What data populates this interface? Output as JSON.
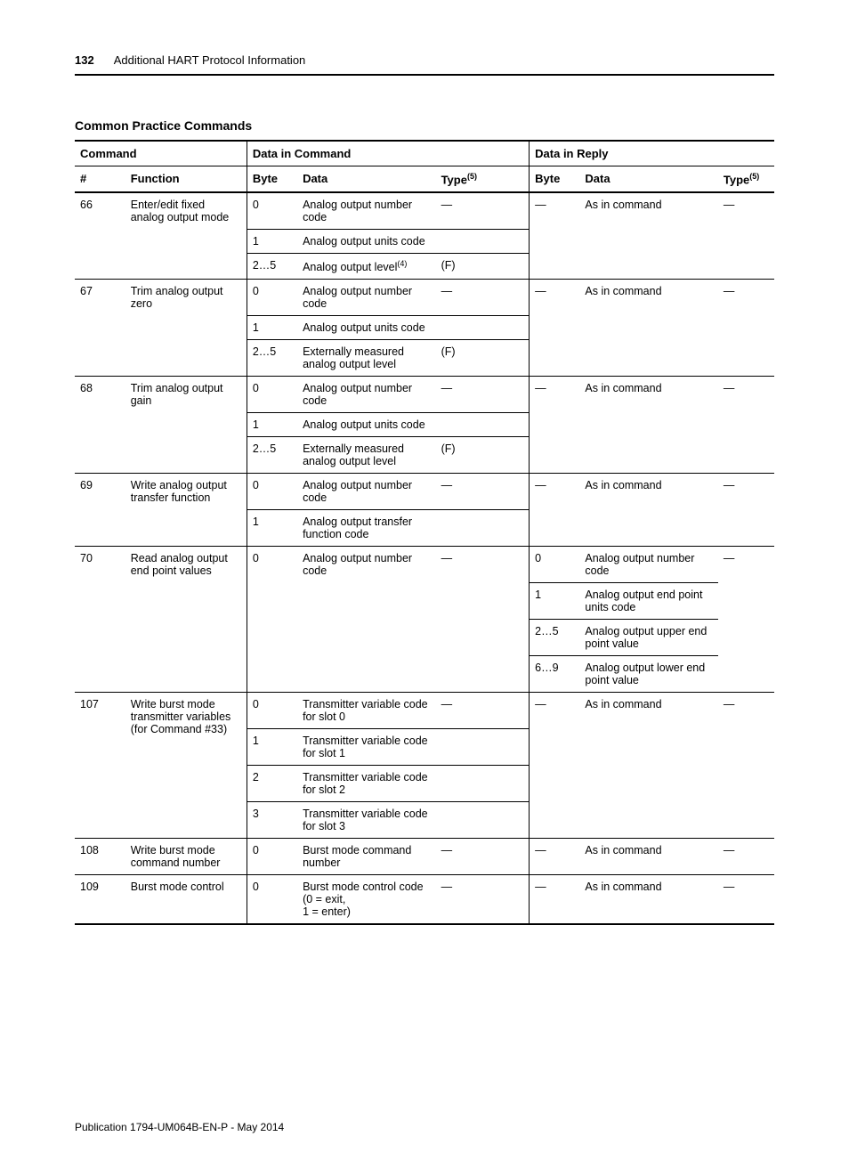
{
  "page_number": "132",
  "header_title": "Additional HART Protocol Information",
  "section_title": "Common Practice Commands",
  "footer": "Publication 1794-UM064B-EN-P - May 2014",
  "thead": {
    "g_command": "Command",
    "g_data_cmd": "Data in Command",
    "g_data_reply": "Data in Reply",
    "c_num": "#",
    "c_func": "Function",
    "c_byte1": "Byte",
    "c_data1": "Data",
    "c_type1": "Type",
    "c_type1_sup": "(5)",
    "c_byte2": "Byte",
    "c_data2": "Data",
    "c_type2": "Type",
    "c_type2_sup": "(5)"
  },
  "cmds": [
    {
      "num": "66",
      "func": "Enter/edit fixed analog output mode",
      "reply_byte": "—",
      "reply_data": "As in command",
      "reply_type": "—",
      "type_first": "—",
      "rows": [
        {
          "byte": "0",
          "data": "Analog output number code",
          "sup": "",
          "type": ""
        },
        {
          "byte": "1",
          "data": "Analog output units code",
          "sup": "",
          "type": ""
        },
        {
          "byte": "2…5",
          "data": "Analog output level",
          "sup": "(4)",
          "type": "(F)"
        }
      ]
    },
    {
      "num": "67",
      "func": "Trim analog output zero",
      "reply_byte": "—",
      "reply_data": "As in command",
      "reply_type": "—",
      "type_first": "—",
      "rows": [
        {
          "byte": "0",
          "data": "Analog output number code",
          "sup": "",
          "type": ""
        },
        {
          "byte": "1",
          "data": "Analog output units code",
          "sup": "",
          "type": ""
        },
        {
          "byte": "2…5",
          "data": "Externally measured analog output level",
          "sup": "",
          "type": "(F)"
        }
      ]
    },
    {
      "num": "68",
      "func": "Trim analog output gain",
      "reply_byte": "—",
      "reply_data": "As in command",
      "reply_type": "—",
      "type_first": "—",
      "rows": [
        {
          "byte": "0",
          "data": "Analog output number code",
          "sup": "",
          "type": ""
        },
        {
          "byte": "1",
          "data": "Analog output units code",
          "sup": "",
          "type": ""
        },
        {
          "byte": "2…5",
          "data": "Externally measured analog output level",
          "sup": "",
          "type": "(F)"
        }
      ]
    },
    {
      "num": "69",
      "func": "Write analog output transfer function",
      "reply_byte": "—",
      "reply_data": "As in command",
      "reply_type": "—",
      "type_first": "—",
      "rows": [
        {
          "byte": "0",
          "data": "Analog output number code",
          "sup": "",
          "type": ""
        },
        {
          "byte": "1",
          "data": "Analog output transfer function code",
          "sup": "",
          "type": ""
        }
      ]
    },
    {
      "num": "70",
      "func": "Read analog output end point values",
      "reply_type": "—",
      "type_first": "—",
      "rows": [
        {
          "byte": "0",
          "data": "Analog output number code",
          "sup": "",
          "type": ""
        }
      ],
      "reply_rows": [
        {
          "byte": "0",
          "data": "Analog output number code"
        },
        {
          "byte": "1",
          "data": "Analog output end point units code"
        },
        {
          "byte": "2…5",
          "data": "Analog output upper end point value"
        },
        {
          "byte": "6…9",
          "data": "Analog output lower end point value"
        }
      ]
    },
    {
      "num": "107",
      "func": "Write burst mode transmitter variables (for Command #33)",
      "reply_byte": "—",
      "reply_data": "As in command",
      "reply_type": "—",
      "type_first": "—",
      "rows": [
        {
          "byte": "0",
          "data": "Transmitter variable code for slot 0",
          "sup": "",
          "type": ""
        },
        {
          "byte": "1",
          "data": "Transmitter variable code for slot 1",
          "sup": "",
          "type": ""
        },
        {
          "byte": "2",
          "data": "Transmitter variable code for slot 2",
          "sup": "",
          "type": ""
        },
        {
          "byte": "3",
          "data": "Transmitter variable code for slot 3",
          "sup": "",
          "type": ""
        }
      ]
    },
    {
      "num": "108",
      "func": "Write burst mode command number",
      "reply_byte": "—",
      "reply_data": "As in command",
      "reply_type": "—",
      "type_first": "—",
      "rows": [
        {
          "byte": "0",
          "data": "Burst mode command number",
          "sup": "",
          "type": ""
        }
      ]
    },
    {
      "num": "109",
      "func": "Burst mode control",
      "reply_byte": "—",
      "reply_data": "As in command",
      "reply_type": "—",
      "type_first": "—",
      "rows": [
        {
          "byte": "0",
          "data": "Burst mode control code (0 = exit,\n1 = enter)",
          "sup": "",
          "type": ""
        }
      ]
    }
  ],
  "colwidths": [
    "54px",
    "130px",
    "54px",
    "148px",
    "100px",
    "54px",
    "148px",
    "60px"
  ]
}
